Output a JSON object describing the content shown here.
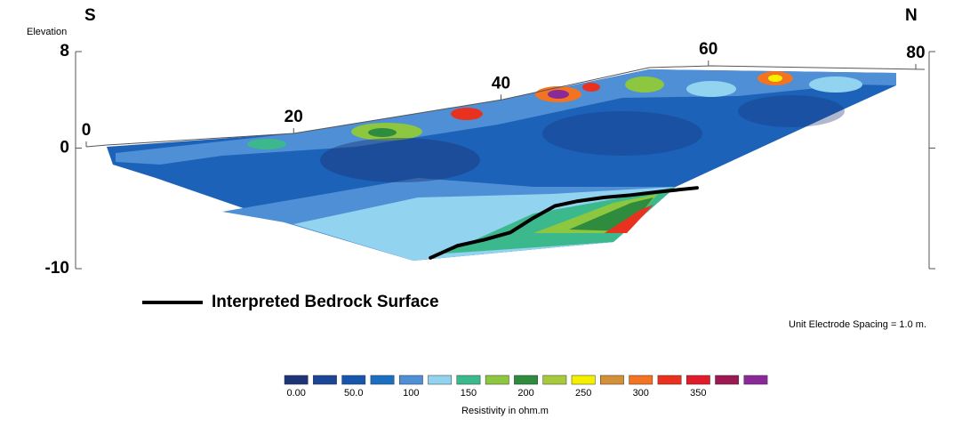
{
  "chart_data": {
    "type": "section",
    "left_label": "S",
    "right_label": "N",
    "ylabel": "Elevation",
    "note": "Unit Electrode Spacing = 1.0 m.",
    "xlim": [
      0,
      80
    ],
    "xticks": [
      0,
      20,
      40,
      60,
      80
    ],
    "ylim": [
      -10,
      8
    ],
    "yticks": [
      8,
      0,
      -10
    ],
    "series": [
      {
        "name": "Interpreted Bedrock Surface",
        "color": "#000000",
        "x": [
          33.2,
          35.8,
          38.4,
          40.9,
          43.1,
          45.2,
          47.4,
          49.9,
          52.5,
          55.5,
          58.9
        ],
        "values": [
          -9.1,
          -8.1,
          -7.6,
          -7.0,
          -5.8,
          -4.8,
          -4.4,
          -4.1,
          -3.9,
          -3.6,
          -3.3
        ]
      }
    ],
    "colorbar": {
      "label": "Resistivity in ohm.m",
      "colors": [
        "#1d3577",
        "#1b4597",
        "#1656ad",
        "#1b6fc2",
        "#4e8fd6",
        "#92d3f0",
        "#3cb98c",
        "#8dc63f",
        "#2f8b3d",
        "#a9c93c",
        "#f5ef00",
        "#d49038",
        "#f27321",
        "#e8321f",
        "#e01b2a",
        "#9b1a52",
        "#8a2a99"
      ],
      "ticks": [
        {
          "value": 0,
          "label": "0.00"
        },
        {
          "value": 50,
          "label": "50.0"
        },
        100,
        150,
        200,
        250,
        300,
        350
      ]
    }
  }
}
